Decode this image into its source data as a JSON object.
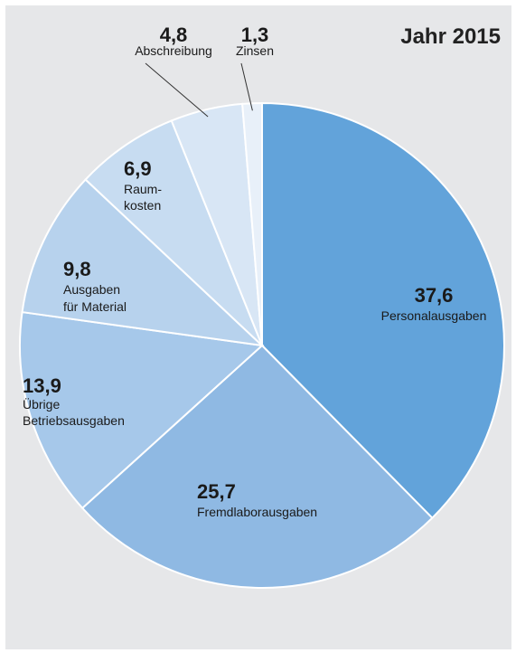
{
  "chart_data": {
    "type": "pie",
    "title": "Jahr 2015",
    "slices": [
      {
        "value": 37.6,
        "value_label": "37,6",
        "label_lines": [
          "Personalausgaben"
        ],
        "color": "#62a3da"
      },
      {
        "value": 25.7,
        "value_label": "25,7",
        "label_lines": [
          "Fremdlaborausgaben"
        ],
        "color": "#8fb9e3"
      },
      {
        "value": 13.9,
        "value_label": "13,9",
        "label_lines": [
          "Übrige",
          "Betriebsausgaben"
        ],
        "color": "#a6c8ea"
      },
      {
        "value": 9.8,
        "value_label": "9,8",
        "label_lines": [
          "Ausgaben",
          "für Material"
        ],
        "color": "#b7d2ed"
      },
      {
        "value": 6.9,
        "value_label": "6,9",
        "label_lines": [
          "Raum-",
          "kosten"
        ],
        "color": "#c7dcf1"
      },
      {
        "value": 4.8,
        "value_label": "4,8",
        "label_lines": [
          "Abschreibung"
        ],
        "color": "#d8e6f5"
      },
      {
        "value": 1.3,
        "value_label": "1,3",
        "label_lines": [
          "Zinsen"
        ],
        "color": "#e8f0f9"
      }
    ]
  }
}
